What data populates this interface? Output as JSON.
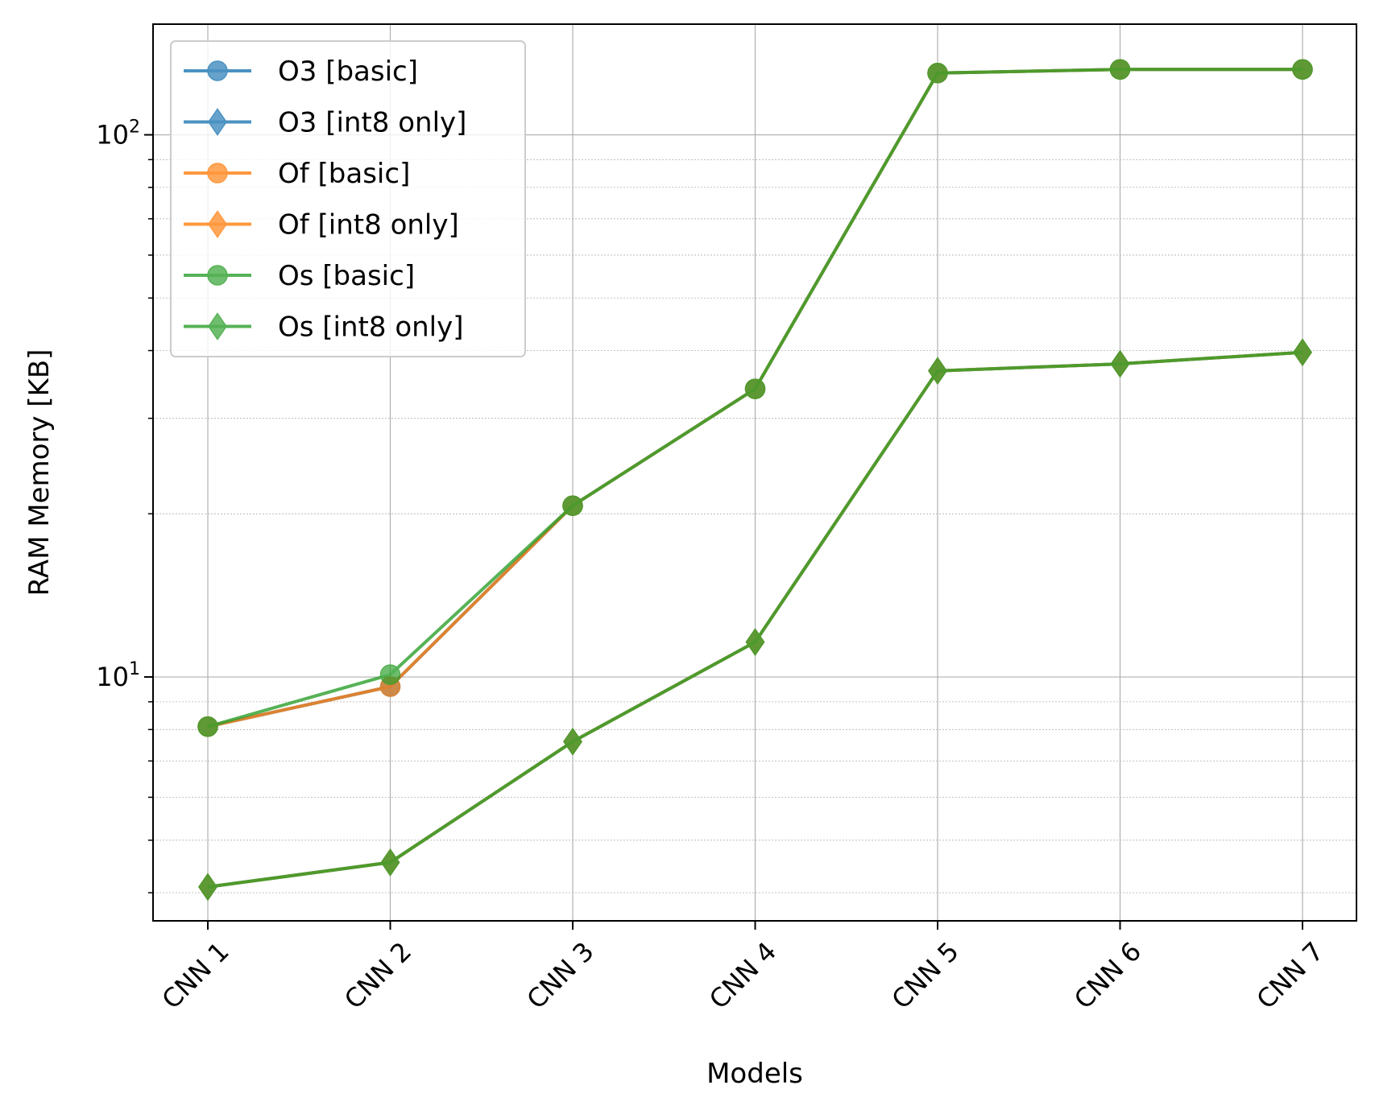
{
  "chart_data": {
    "type": "line",
    "xlabel": "Models",
    "ylabel": "RAM Memory [KB]",
    "yscale": "log",
    "ylim": [
      3.55,
      160
    ],
    "y_major_ticks": [
      {
        "value": 10,
        "base": "10",
        "exp": "1"
      },
      {
        "value": 100,
        "base": "10",
        "exp": "2"
      }
    ],
    "grid": "on",
    "legend_position": "upper-left",
    "categories": [
      "CNN 1",
      "CNN 2",
      "CNN 3",
      "CNN 4",
      "CNN 5",
      "CNN 6",
      "CNN 7"
    ],
    "series": [
      {
        "name": "O3 [basic]",
        "marker": "circle",
        "color": "#1f77b4",
        "values": [
          8.1,
          9.6,
          20.7,
          34.0,
          130.0,
          132.0,
          132.0
        ]
      },
      {
        "name": "O3 [int8 only]",
        "marker": "diamond",
        "color": "#1f77b4",
        "values": [
          4.1,
          4.55,
          7.6,
          11.6,
          36.7,
          37.8,
          39.7
        ]
      },
      {
        "name": "Of [basic]",
        "marker": "circle",
        "color": "#ff7f0e",
        "values": [
          8.1,
          9.6,
          20.7,
          34.0,
          130.0,
          132.0,
          132.0
        ]
      },
      {
        "name": "Of [int8 only]",
        "marker": "diamond",
        "color": "#ff7f0e",
        "values": [
          4.1,
          4.55,
          7.6,
          11.6,
          36.7,
          37.8,
          39.7
        ]
      },
      {
        "name": "Os [basic]",
        "marker": "circle",
        "color": "#2ca02c",
        "values": [
          8.1,
          10.1,
          20.7,
          34.0,
          130.0,
          132.0,
          132.0
        ]
      },
      {
        "name": "Os [int8 only]",
        "marker": "diamond",
        "color": "#2ca02c",
        "values": [
          4.1,
          4.55,
          7.6,
          11.6,
          36.7,
          37.8,
          39.7
        ]
      }
    ]
  }
}
